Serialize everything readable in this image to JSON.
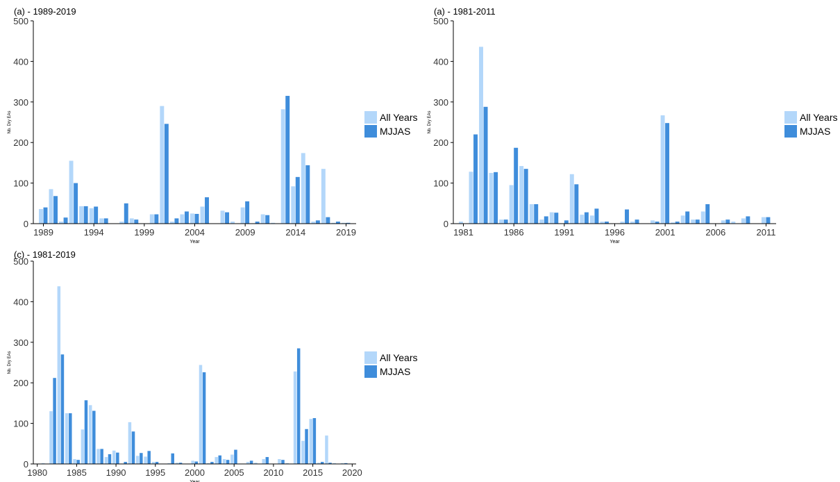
{
  "colors": {
    "all_years": "#b3d7fa",
    "mjjas": "#3f8ddb"
  },
  "chart_data": [
    {
      "type": "bar",
      "title": "(a) - 1989-2019",
      "xlabel": "Year",
      "ylabel": "Nb. Dry EAs",
      "ylim": [
        0,
        500
      ],
      "yticks": [
        0,
        100,
        200,
        300,
        400,
        500
      ],
      "xticks": [
        1989,
        1994,
        1999,
        2004,
        2009,
        2014,
        2019
      ],
      "xlim": [
        1988,
        2020
      ],
      "grid": false,
      "legend_position": "right",
      "categories": [
        1989,
        1990,
        1991,
        1992,
        1993,
        1994,
        1995,
        1996,
        1997,
        1998,
        1999,
        2000,
        2001,
        2002,
        2003,
        2004,
        2005,
        2006,
        2007,
        2008,
        2009,
        2010,
        2011,
        2012,
        2013,
        2014,
        2015,
        2016,
        2017,
        2018,
        2019
      ],
      "series": [
        {
          "name": "All Years",
          "values": [
            36,
            85,
            5,
            155,
            43,
            38,
            13,
            0,
            5,
            13,
            0,
            23,
            290,
            5,
            23,
            25,
            42,
            0,
            32,
            5,
            40,
            0,
            23,
            2,
            282,
            92,
            174,
            5,
            135,
            2,
            2
          ]
        },
        {
          "name": "MJJAS",
          "values": [
            40,
            68,
            15,
            100,
            43,
            42,
            13,
            0,
            50,
            10,
            0,
            23,
            246,
            13,
            30,
            24,
            65,
            0,
            28,
            0,
            55,
            5,
            21,
            0,
            315,
            115,
            144,
            8,
            16,
            5,
            2
          ]
        }
      ]
    },
    {
      "type": "bar",
      "title": "(a) - 1981-2011",
      "xlabel": "Year",
      "ylabel": "Nb. Dry EAs",
      "ylim": [
        0,
        500
      ],
      "yticks": [
        0,
        100,
        200,
        300,
        400,
        500
      ],
      "xticks": [
        1981,
        1986,
        1991,
        1996,
        2001,
        2006,
        2011
      ],
      "xlim": [
        1980,
        2012
      ],
      "grid": false,
      "legend_position": "right",
      "categories": [
        1981,
        1982,
        1983,
        1984,
        1985,
        1986,
        1987,
        1988,
        1989,
        1990,
        1991,
        1992,
        1993,
        1994,
        1995,
        1996,
        1997,
        1998,
        1999,
        2000,
        2001,
        2002,
        2003,
        2004,
        2005,
        2006,
        2007,
        2008,
        2009,
        2010,
        2011
      ],
      "series": [
        {
          "name": "All Years",
          "values": [
            5,
            128,
            436,
            125,
            10,
            95,
            142,
            48,
            10,
            28,
            0,
            122,
            22,
            20,
            5,
            0,
            5,
            5,
            0,
            8,
            267,
            3,
            20,
            10,
            30,
            0,
            8,
            5,
            13,
            0,
            16
          ]
        },
        {
          "name": "MJJAS",
          "values": [
            0,
            220,
            288,
            127,
            10,
            187,
            135,
            48,
            18,
            27,
            8,
            97,
            28,
            37,
            5,
            0,
            35,
            10,
            0,
            5,
            248,
            5,
            30,
            10,
            48,
            0,
            10,
            0,
            18,
            0,
            16
          ]
        }
      ]
    },
    {
      "type": "bar",
      "title": "(c) - 1981-2019",
      "xlabel": "Year",
      "ylabel": "Nb. Dry EAs",
      "ylim": [
        0,
        500
      ],
      "yticks": [
        0,
        100,
        200,
        300,
        400,
        500
      ],
      "xticks": [
        1980,
        1985,
        1990,
        1995,
        2000,
        2005,
        2010,
        2015,
        2020
      ],
      "xlim": [
        1979.5,
        2020.5
      ],
      "grid": false,
      "legend_position": "right",
      "categories": [
        1981,
        1982,
        1983,
        1984,
        1985,
        1986,
        1987,
        1988,
        1989,
        1990,
        1991,
        1992,
        1993,
        1994,
        1995,
        1996,
        1997,
        1998,
        1999,
        2000,
        2001,
        2002,
        2003,
        2004,
        2005,
        2006,
        2007,
        2008,
        2009,
        2010,
        2011,
        2012,
        2013,
        2014,
        2015,
        2016,
        2017,
        2018,
        2019
      ],
      "series": [
        {
          "name": "All Years",
          "values": [
            2,
            130,
            438,
            125,
            12,
            85,
            145,
            37,
            17,
            33,
            0,
            103,
            20,
            18,
            5,
            0,
            2,
            3,
            0,
            8,
            244,
            2,
            17,
            12,
            23,
            0,
            5,
            3,
            12,
            0,
            12,
            2,
            228,
            57,
            111,
            3,
            70,
            2,
            2
          ]
        },
        {
          "name": "MJJAS",
          "values": [
            0,
            212,
            270,
            125,
            10,
            157,
            131,
            37,
            24,
            28,
            5,
            80,
            27,
            32,
            5,
            0,
            26,
            3,
            0,
            6,
            226,
            5,
            21,
            10,
            35,
            0,
            8,
            0,
            17,
            0,
            10,
            0,
            285,
            86,
            113,
            5,
            3,
            0,
            2
          ]
        }
      ]
    }
  ]
}
